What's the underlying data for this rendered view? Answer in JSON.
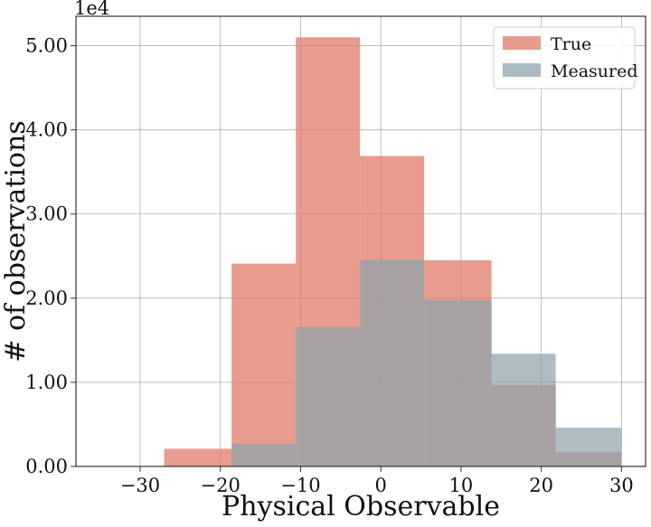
{
  "chart_data": {
    "type": "histogram",
    "xlabel": "Physical Observable",
    "ylabel": "# of observations",
    "y_scale_label": "1e4",
    "xlim": [
      -38,
      33
    ],
    "ylim": [
      0,
      5.35
    ],
    "x_ticks": [
      -30,
      -20,
      -10,
      0,
      10,
      20,
      30
    ],
    "x_tick_labels": [
      "−30",
      "−20",
      "−10",
      "0",
      "10",
      "20",
      "30"
    ],
    "y_ticks": [
      0,
      1,
      2,
      3,
      4,
      5
    ],
    "y_tick_labels": [
      "0.00",
      "1.00",
      "2.00",
      "3.00",
      "4.00",
      "5.00"
    ],
    "grid": true,
    "legend_position": "top-right",
    "bin_edges": [
      -27,
      -18.6,
      -10.6,
      -2.6,
      5.4,
      13.8,
      21.8,
      30
    ],
    "series": [
      {
        "name": "True",
        "color": "#e07b67",
        "values": [
          0.21,
          2.41,
          5.1,
          3.69,
          2.45,
          0.97,
          0.17
        ]
      },
      {
        "name": "Measured",
        "color": "#8fa3ad",
        "values": [
          0.0,
          0.27,
          1.66,
          2.46,
          1.98,
          1.34,
          0.46
        ]
      }
    ]
  }
}
